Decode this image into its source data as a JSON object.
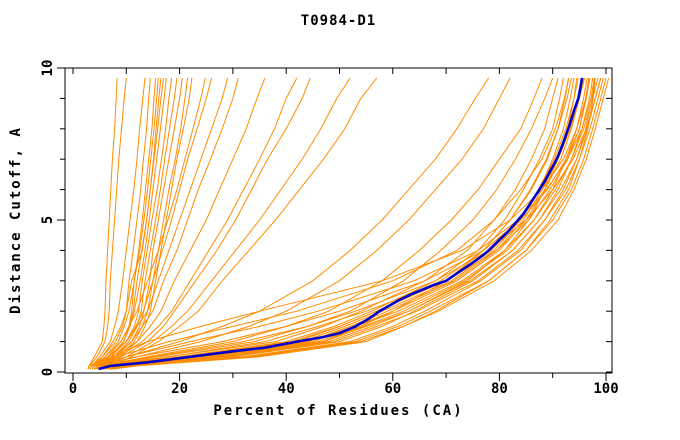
{
  "chart_data": {
    "type": "line",
    "title": "T0984-D1",
    "xlabel": "Percent of Residues (CA)",
    "ylabel": "Distance Cutoff, A",
    "xlim": [
      0,
      102
    ],
    "ylim": [
      0,
      10
    ],
    "grid": "off",
    "legend": "none",
    "colors": {
      "model_lines": "#ff8c00",
      "highlight_line": "#0000cd",
      "axis": "#000000",
      "background": "#ffffff"
    },
    "axes": {
      "x": {
        "major_ticks": [
          {
            "value": 0,
            "label": "0"
          },
          {
            "value": 20,
            "label": "20"
          },
          {
            "value": 40,
            "label": "40"
          },
          {
            "value": 60,
            "label": "60"
          },
          {
            "value": 80,
            "label": "80"
          },
          {
            "value": 100,
            "label": "100"
          }
        ],
        "minor_ticks": [
          10,
          30,
          50,
          70,
          90
        ]
      },
      "y": {
        "major_ticks": [
          {
            "value": 0,
            "label": "0"
          },
          {
            "value": 5,
            "label": "5"
          },
          {
            "value": 10,
            "label": "10"
          }
        ],
        "minor_ticks": [
          1,
          2,
          3,
          4,
          6,
          7,
          8,
          9
        ]
      }
    },
    "cutoff_grid": [
      0.1,
      0.2,
      0.5,
      1,
      1.5,
      2,
      3,
      4,
      5,
      6,
      7,
      8,
      9,
      9.67
    ],
    "models_percent": [
      [
        2.8,
        3,
        4,
        5.5,
        5.8,
        6,
        6.2,
        6.5,
        6.8,
        7.1,
        7.4,
        7.8,
        8.1,
        8.3
      ],
      [
        2.8,
        3,
        4.5,
        6,
        6.5,
        6.8,
        7,
        7.4,
        7.8,
        8.2,
        8.6,
        9.1,
        9.6,
        10
      ],
      [
        3.2,
        3.5,
        5,
        7,
        7.8,
        8.5,
        9.3,
        10,
        10.7,
        11.4,
        12,
        12.5,
        13.1,
        13.5
      ],
      [
        3.2,
        3.5,
        5.5,
        8,
        9.3,
        10,
        10.5,
        11.3,
        12,
        12.7,
        13.2,
        13.8,
        14.2,
        14.5
      ],
      [
        3.6,
        4,
        7,
        9.5,
        10.5,
        11,
        11.5,
        12.3,
        13,
        13.6,
        14.2,
        14.8,
        15.2,
        15.5
      ],
      [
        3.6,
        4,
        6,
        8.5,
        9.6,
        10.5,
        11.5,
        12.5,
        13.3,
        14,
        14.6,
        15.2,
        15.7,
        16
      ],
      [
        3.6,
        4,
        5.5,
        7.5,
        9,
        10,
        11,
        13,
        13.8,
        14.5,
        15.1,
        15.6,
        16.1,
        16.5
      ],
      [
        4,
        4.5,
        6.5,
        9,
        10.5,
        11.3,
        12,
        12.9,
        13.8,
        14.5,
        15.2,
        15.9,
        16.5,
        17
      ],
      [
        4,
        4.5,
        7,
        9.5,
        10.7,
        11.5,
        12.6,
        13.5,
        14.3,
        15,
        15.7,
        16.4,
        17.1,
        17.5
      ],
      [
        4.5,
        5,
        7,
        10,
        11.5,
        12.3,
        13,
        13.9,
        14.8,
        15.8,
        16.6,
        17.4,
        18,
        18.5
      ],
      [
        4.5,
        5,
        7.5,
        10.5,
        12,
        12.8,
        13.5,
        14.5,
        15.5,
        16.4,
        17.2,
        18.1,
        19,
        19.5
      ],
      [
        4.5,
        5,
        8,
        11,
        12.5,
        13.3,
        14.4,
        15,
        16,
        17,
        18,
        19,
        20,
        20.5
      ],
      [
        5,
        5.5,
        8.5,
        11.5,
        13,
        14,
        15,
        16,
        17,
        18,
        19.2,
        20.2,
        21,
        21.5
      ],
      [
        5,
        5.5,
        9,
        12,
        13.5,
        14.5,
        15.5,
        16.5,
        17.5,
        18.5,
        19.5,
        20.7,
        21.8,
        22.3
      ],
      [
        3.6,
        4,
        6,
        9,
        10.5,
        12,
        14,
        16,
        17.8,
        19.5,
        21,
        22.5,
        24,
        24.8
      ],
      [
        3.6,
        4,
        6.5,
        10,
        11.8,
        13.2,
        15,
        16.8,
        18.5,
        20,
        21.5,
        23.3,
        25,
        26
      ],
      [
        4,
        4.5,
        7,
        10,
        12,
        14,
        16,
        18,
        20,
        22,
        24,
        26,
        28,
        29
      ],
      [
        4.5,
        5,
        7.5,
        11,
        13,
        15,
        17,
        19.5,
        21.5,
        23.5,
        25.8,
        28,
        30,
        31
      ],
      [
        4.5,
        5,
        8,
        12,
        14.5,
        16.5,
        19,
        22,
        25,
        27.5,
        30,
        32.5,
        34.5,
        36
      ],
      [
        4.5,
        5,
        8.5,
        13,
        16,
        18.5,
        22,
        25.5,
        29,
        32,
        35,
        37.8,
        40,
        42
      ],
      [
        5.2,
        6,
        9,
        14,
        17,
        19,
        23,
        27,
        30.5,
        33.5,
        36.5,
        40,
        43,
        44.5
      ],
      [
        5.2,
        6,
        10,
        15,
        18.5,
        21.5,
        26,
        30.5,
        35,
        39,
        43,
        46.5,
        49.5,
        52
      ],
      [
        6,
        7,
        11,
        16,
        20,
        23.5,
        28,
        33,
        38,
        42.5,
        47,
        51,
        54,
        57
      ],
      [
        3.6,
        4,
        10,
        20,
        28,
        35,
        45,
        52,
        58,
        63,
        68,
        72,
        75.5,
        78
      ],
      [
        4,
        4.5,
        12,
        24,
        33,
        40,
        50,
        57,
        63,
        68,
        73,
        77,
        80,
        82
      ],
      [
        4.2,
        5,
        14,
        30,
        40,
        48,
        58,
        65,
        71,
        76,
        80,
        84,
        86.5,
        88
      ],
      [
        4.2,
        5,
        16,
        34,
        44,
        52,
        62,
        69,
        75,
        79.5,
        83,
        86,
        88.5,
        90
      ],
      [
        4.5,
        5,
        18,
        38,
        47,
        54,
        66,
        74,
        79,
        83,
        86,
        88.5,
        90,
        91
      ],
      [
        5,
        6,
        20,
        40,
        49,
        56,
        68,
        76,
        81,
        84.5,
        87.5,
        90,
        91.3,
        92
      ],
      [
        3.2,
        3.5,
        8,
        18,
        30,
        42,
        60,
        72,
        79,
        84,
        88,
        90.5,
        92.2,
        93
      ],
      [
        5,
        6,
        21,
        41,
        50,
        57,
        69,
        77,
        82,
        86,
        89,
        91,
        92.7,
        93.5
      ],
      [
        5.5,
        7,
        23,
        43,
        51,
        58,
        71,
        79,
        84,
        87.5,
        90,
        92,
        93.3,
        94
      ],
      [
        6.5,
        9,
        28,
        48,
        56,
        63,
        74,
        81,
        85.5,
        88.5,
        91,
        92.8,
        94,
        94.5
      ],
      [
        6,
        8,
        25,
        45,
        53,
        60,
        72,
        80,
        85,
        88.5,
        91.5,
        93.5,
        95,
        96
      ],
      [
        2.9,
        3,
        7,
        14,
        24,
        35,
        58,
        73,
        82,
        88,
        92,
        94.5,
        95.8,
        96.5
      ],
      [
        6,
        8,
        26,
        46,
        54.5,
        62,
        73.5,
        81.5,
        86.5,
        90,
        92.5,
        94.5,
        96.2,
        97
      ],
      [
        3.6,
        4,
        12,
        28,
        40,
        50,
        66,
        77,
        84,
        89,
        92.5,
        95,
        96.3,
        97
      ],
      [
        6.5,
        9,
        30,
        50,
        58,
        64,
        75,
        82.5,
        87.5,
        91,
        93.5,
        95.5,
        96.9,
        97.5
      ],
      [
        7,
        10,
        32,
        52,
        60,
        66,
        76.5,
        84,
        88.5,
        92,
        94.5,
        96.2,
        97.4,
        98
      ],
      [
        7.5,
        12,
        35,
        55,
        62,
        68,
        78,
        85,
        89.5,
        93,
        95,
        96.6,
        97.6,
        98
      ],
      [
        5.5,
        7,
        24,
        44,
        53,
        61,
        73,
        81,
        86.5,
        90.5,
        93.5,
        95.8,
        97.5,
        98.5
      ],
      [
        6,
        8,
        27,
        47,
        55,
        63,
        74.5,
        82.5,
        87.5,
        91.5,
        94.5,
        96.5,
        98,
        99
      ],
      [
        4.2,
        5,
        15,
        32,
        44,
        53,
        68,
        78,
        85,
        90,
        93.8,
        96.3,
        98,
        99
      ],
      [
        6.5,
        9,
        29,
        49,
        57,
        64.5,
        76,
        83.5,
        88.5,
        92.5,
        95,
        97,
        98.5,
        99.5
      ],
      [
        7,
        10,
        33,
        53,
        61,
        67,
        78,
        85,
        90,
        93.5,
        95.8,
        97.5,
        99,
        100
      ],
      [
        7.5,
        11,
        34,
        54,
        62,
        68.5,
        79,
        86,
        91,
        94,
        96.3,
        98,
        99.5,
        100.5
      ],
      [
        6,
        8,
        24,
        44,
        52,
        59,
        71.5,
        79.5,
        84.5,
        88,
        91,
        93.3,
        95,
        95.8
      ],
      [
        5,
        6,
        18,
        36,
        46,
        55,
        70,
        79.5,
        85.5,
        89.5,
        92.8,
        95,
        96.2,
        96.8
      ],
      [
        5.5,
        7,
        22,
        42,
        50,
        57,
        70,
        78.5,
        83.8,
        87.3,
        90.3,
        92.5,
        94,
        94.8
      ],
      [
        3.6,
        4,
        10,
        22,
        35,
        46,
        64,
        76,
        83.5,
        88.8,
        92.8,
        95.5,
        97.2,
        97.8
      ],
      [
        7,
        10,
        30,
        47,
        54,
        60,
        70,
        77,
        82,
        85.8,
        88.8,
        91,
        92.3,
        93
      ]
    ],
    "best_model": {
      "points": [
        [
          4.8,
          0.1
        ],
        [
          7,
          0.2
        ],
        [
          14,
          0.32
        ],
        [
          22,
          0.5
        ],
        [
          30,
          0.68
        ],
        [
          36,
          0.8
        ],
        [
          42,
          1.0
        ],
        [
          47,
          1.15
        ],
        [
          50,
          1.28
        ],
        [
          53,
          1.5
        ],
        [
          55.5,
          1.75
        ],
        [
          57.5,
          2.0
        ],
        [
          61,
          2.35
        ],
        [
          64,
          2.6
        ],
        [
          67.5,
          2.85
        ],
        [
          70,
          3.0
        ],
        [
          72.5,
          3.3
        ],
        [
          75,
          3.6
        ],
        [
          77,
          3.85
        ],
        [
          78,
          4.0
        ],
        [
          80,
          4.35
        ],
        [
          81.5,
          4.6
        ],
        [
          83.5,
          5.0
        ],
        [
          84.5,
          5.2
        ],
        [
          86,
          5.6
        ],
        [
          87.5,
          6.0
        ],
        [
          88.6,
          6.3
        ],
        [
          89.5,
          6.6
        ],
        [
          90.3,
          6.85
        ],
        [
          91,
          7.1
        ],
        [
          91.9,
          7.5
        ],
        [
          92.5,
          7.8
        ],
        [
          93.2,
          8.15
        ],
        [
          94,
          8.6
        ],
        [
          94.8,
          9.0
        ],
        [
          95.2,
          9.35
        ],
        [
          95.5,
          9.67
        ]
      ]
    }
  }
}
